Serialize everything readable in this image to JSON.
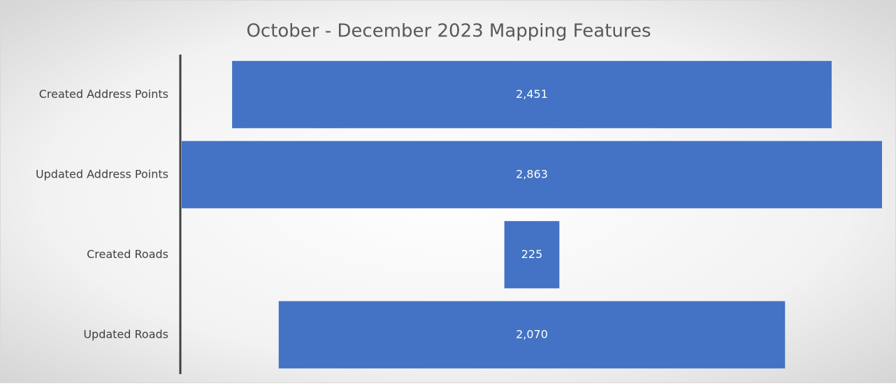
{
  "chart_data": {
    "type": "funnel",
    "title": "October - December 2023 Mapping Features",
    "categories": [
      "Created Address Points",
      "Updated Address Points",
      "Created Roads",
      "Updated Roads"
    ],
    "values": [
      2451,
      2863,
      225,
      2070
    ],
    "value_labels": [
      "2,451",
      "2,863",
      "225",
      "2,070"
    ],
    "color": "#4472c4"
  }
}
